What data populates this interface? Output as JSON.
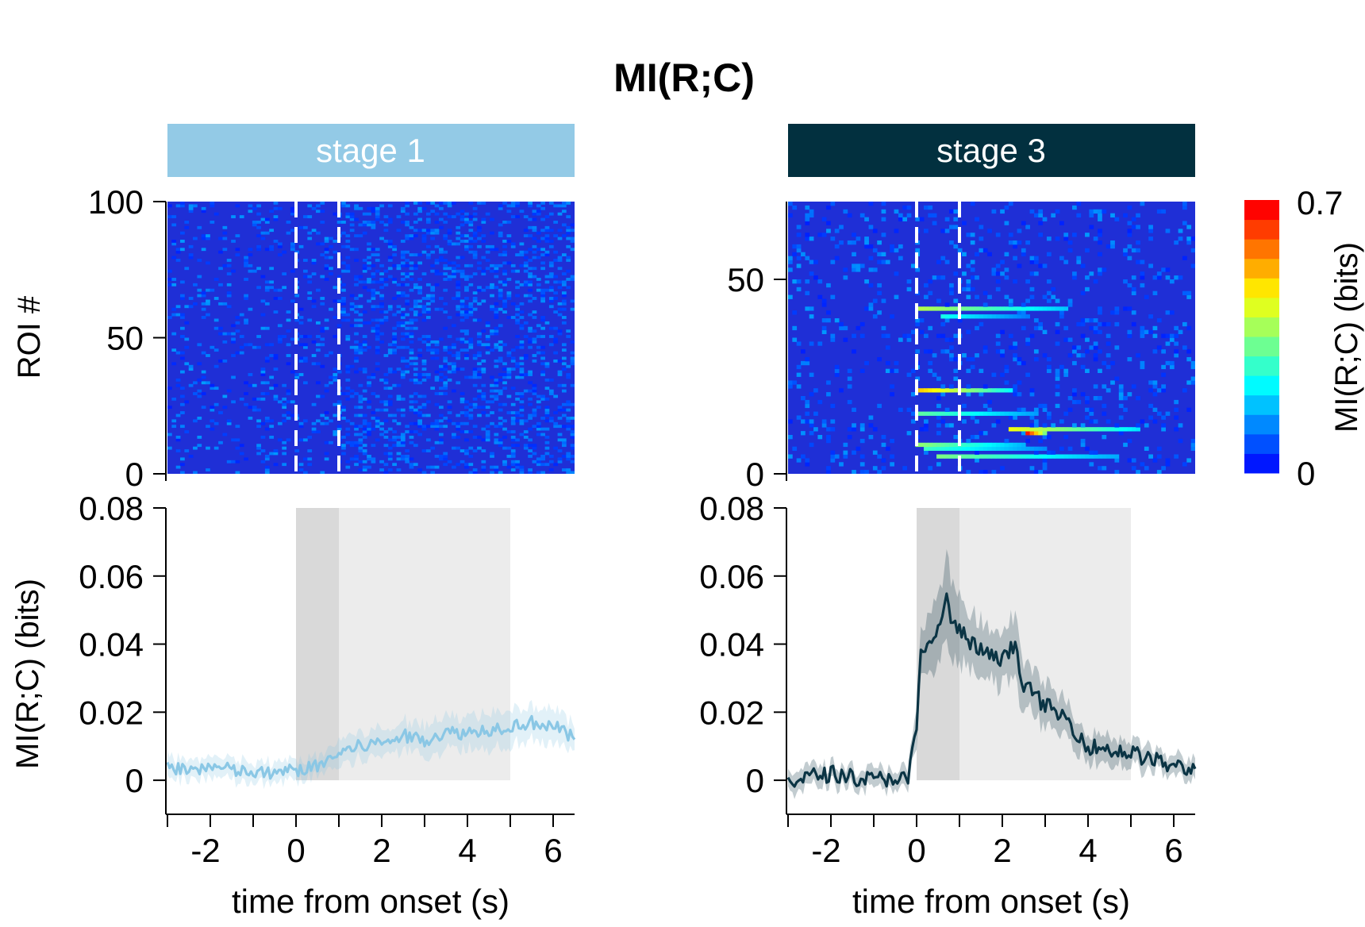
{
  "figure": {
    "title": "MI(R;C)"
  },
  "colors": {
    "stage1_band": "#93cae6",
    "stage3_band": "#02303f",
    "stage1_line": "#8ac7e5",
    "stage3_line": "#0b3444",
    "heatmap_background": "#1f2fd6",
    "shade_stimulus": "#d9d9d9",
    "shade_response": "#ececec"
  },
  "colorbar": {
    "label": "MI(R;C) (bits)",
    "tick_max": "0.7",
    "tick_min": "0",
    "range": [
      0,
      0.7
    ],
    "colormap": "jet",
    "levels": 14
  },
  "chart_data": [
    {
      "type": "heatmap",
      "panel": "stage1-heatmap",
      "title": "stage 1",
      "xlabel": "",
      "ylabel": "ROI #",
      "xlim": [
        -3,
        6.5
      ],
      "ylim": [
        0,
        100
      ],
      "yticks": [
        0,
        50,
        100
      ],
      "ytick_labels": [
        "0",
        "50",
        "100"
      ],
      "n_rois": 100,
      "dashed_lines_x": [
        0,
        1
      ],
      "hot_rows": []
    },
    {
      "type": "heatmap",
      "panel": "stage3-heatmap",
      "title": "stage 3",
      "xlabel": "",
      "ylabel": "",
      "xlim": [
        -3,
        6.5
      ],
      "ylim": [
        0,
        70
      ],
      "yticks": [
        0,
        50
      ],
      "ytick_labels": [
        "0",
        "50"
      ],
      "n_rois": 70,
      "dashed_lines_x": [
        0,
        1
      ],
      "hot_rows": [
        {
          "roi": 42,
          "t_start": 0.0,
          "t_end": 3.5,
          "peak": 0.35
        },
        {
          "roi": 40,
          "t_start": 0.6,
          "t_end": 2.6,
          "peak": 0.22
        },
        {
          "roi": 21,
          "t_start": 0.0,
          "t_end": 2.2,
          "peak": 0.45
        },
        {
          "roi": 15,
          "t_start": 0.0,
          "t_end": 2.8,
          "peak": 0.28
        },
        {
          "roi": 11,
          "t_start": 2.1,
          "t_end": 5.2,
          "peak": 0.4
        },
        {
          "roi": 10,
          "t_start": 2.5,
          "t_end": 3.0,
          "peak": 0.65
        },
        {
          "roi": 7,
          "t_start": 0.0,
          "t_end": 2.5,
          "peak": 0.32
        },
        {
          "roi": 6,
          "t_start": 0.2,
          "t_end": 3.0,
          "peak": 0.25
        },
        {
          "roi": 4,
          "t_start": 0.5,
          "t_end": 4.7,
          "peak": 0.3
        }
      ]
    },
    {
      "type": "line",
      "panel": "stage1-trace",
      "title": "",
      "xlabel": "time from onset (s)",
      "ylabel": "MI(R;C) (bits)",
      "xlim": [
        -3,
        6.5
      ],
      "ylim": [
        -0.01,
        0.08
      ],
      "xticks": [
        -3,
        -2,
        -1,
        0,
        1,
        2,
        3,
        4,
        5,
        6
      ],
      "xtick_labels": [
        "-2",
        "0",
        "2",
        "4",
        "6"
      ],
      "xtick_label_values": [
        -2,
        0,
        2,
        4,
        6
      ],
      "yticks": [
        0,
        0.02,
        0.04,
        0.06,
        0.08
      ],
      "ytick_labels": [
        "0",
        "0.02",
        "0.04",
        "0.06",
        "0.08"
      ],
      "shaded_regions": [
        {
          "x0": 0,
          "x1": 1,
          "kind": "stimulus"
        },
        {
          "x0": 1,
          "x1": 5,
          "kind": "response"
        }
      ],
      "series": [
        {
          "x": [
            -3.0,
            -2.5,
            -2.0,
            -1.5,
            -1.0,
            -0.5,
            0.0,
            0.5,
            1.0,
            1.5,
            2.0,
            2.5,
            3.0,
            3.5,
            4.0,
            4.5,
            5.0,
            5.5,
            6.0,
            6.5
          ],
          "y": [
            0.004,
            0.003,
            0.004,
            0.003,
            0.002,
            0.002,
            0.003,
            0.004,
            0.008,
            0.01,
            0.011,
            0.013,
            0.012,
            0.014,
            0.014,
            0.015,
            0.016,
            0.017,
            0.016,
            0.012
          ],
          "error": [
            0.003,
            0.003,
            0.003,
            0.003,
            0.003,
            0.003,
            0.003,
            0.003,
            0.004,
            0.004,
            0.004,
            0.004,
            0.005,
            0.005,
            0.005,
            0.005,
            0.005,
            0.005,
            0.005,
            0.004
          ]
        }
      ]
    },
    {
      "type": "line",
      "panel": "stage3-trace",
      "title": "",
      "xlabel": "time from onset (s)",
      "ylabel": "",
      "xlim": [
        -3,
        6.5
      ],
      "ylim": [
        -0.01,
        0.08
      ],
      "xticks": [
        -3,
        -2,
        -1,
        0,
        1,
        2,
        3,
        4,
        5,
        6
      ],
      "xtick_labels": [
        "-2",
        "0",
        "2",
        "4",
        "6"
      ],
      "xtick_label_values": [
        -2,
        0,
        2,
        4,
        6
      ],
      "yticks": [
        0,
        0.02,
        0.04,
        0.06,
        0.08
      ],
      "ytick_labels": [
        "0",
        "0.02",
        "0.04",
        "0.06",
        "0.08"
      ],
      "shaded_regions": [
        {
          "x0": 0,
          "x1": 1,
          "kind": "stimulus"
        },
        {
          "x0": 1,
          "x1": 5,
          "kind": "response"
        }
      ],
      "series": [
        {
          "x": [
            -3.0,
            -2.5,
            -2.0,
            -1.5,
            -1.0,
            -0.5,
            -0.2,
            0.0,
            0.1,
            0.3,
            0.5,
            0.7,
            0.8,
            1.0,
            1.3,
            1.6,
            2.0,
            2.3,
            2.5,
            3.0,
            3.5,
            4.0,
            4.5,
            5.0,
            5.5,
            6.0,
            6.5
          ],
          "y": [
            0.0,
            0.001,
            0.002,
            0.001,
            0.0,
            0.001,
            0.0,
            0.015,
            0.038,
            0.039,
            0.045,
            0.053,
            0.047,
            0.044,
            0.04,
            0.037,
            0.035,
            0.04,
            0.028,
            0.022,
            0.018,
            0.01,
            0.009,
            0.008,
            0.006,
            0.004,
            0.003
          ],
          "error": [
            0.003,
            0.003,
            0.003,
            0.003,
            0.003,
            0.003,
            0.003,
            0.005,
            0.008,
            0.009,
            0.01,
            0.012,
            0.011,
            0.009,
            0.008,
            0.008,
            0.008,
            0.009,
            0.007,
            0.006,
            0.005,
            0.004,
            0.004,
            0.004,
            0.003,
            0.003,
            0.003
          ]
        }
      ]
    }
  ]
}
